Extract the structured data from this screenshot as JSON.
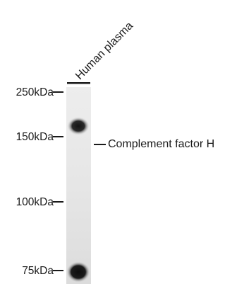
{
  "lane": {
    "sample_label": "Human plasma"
  },
  "markers": [
    {
      "label": "250kDa"
    },
    {
      "label": "150kDa"
    },
    {
      "label": "100kDa"
    },
    {
      "label": "75kDa"
    }
  ],
  "band_annotation": {
    "label": "Complement factor H"
  },
  "colors": {
    "text": "#1a1a1a",
    "membrane": "#e4e4e4",
    "band": "#151515"
  }
}
